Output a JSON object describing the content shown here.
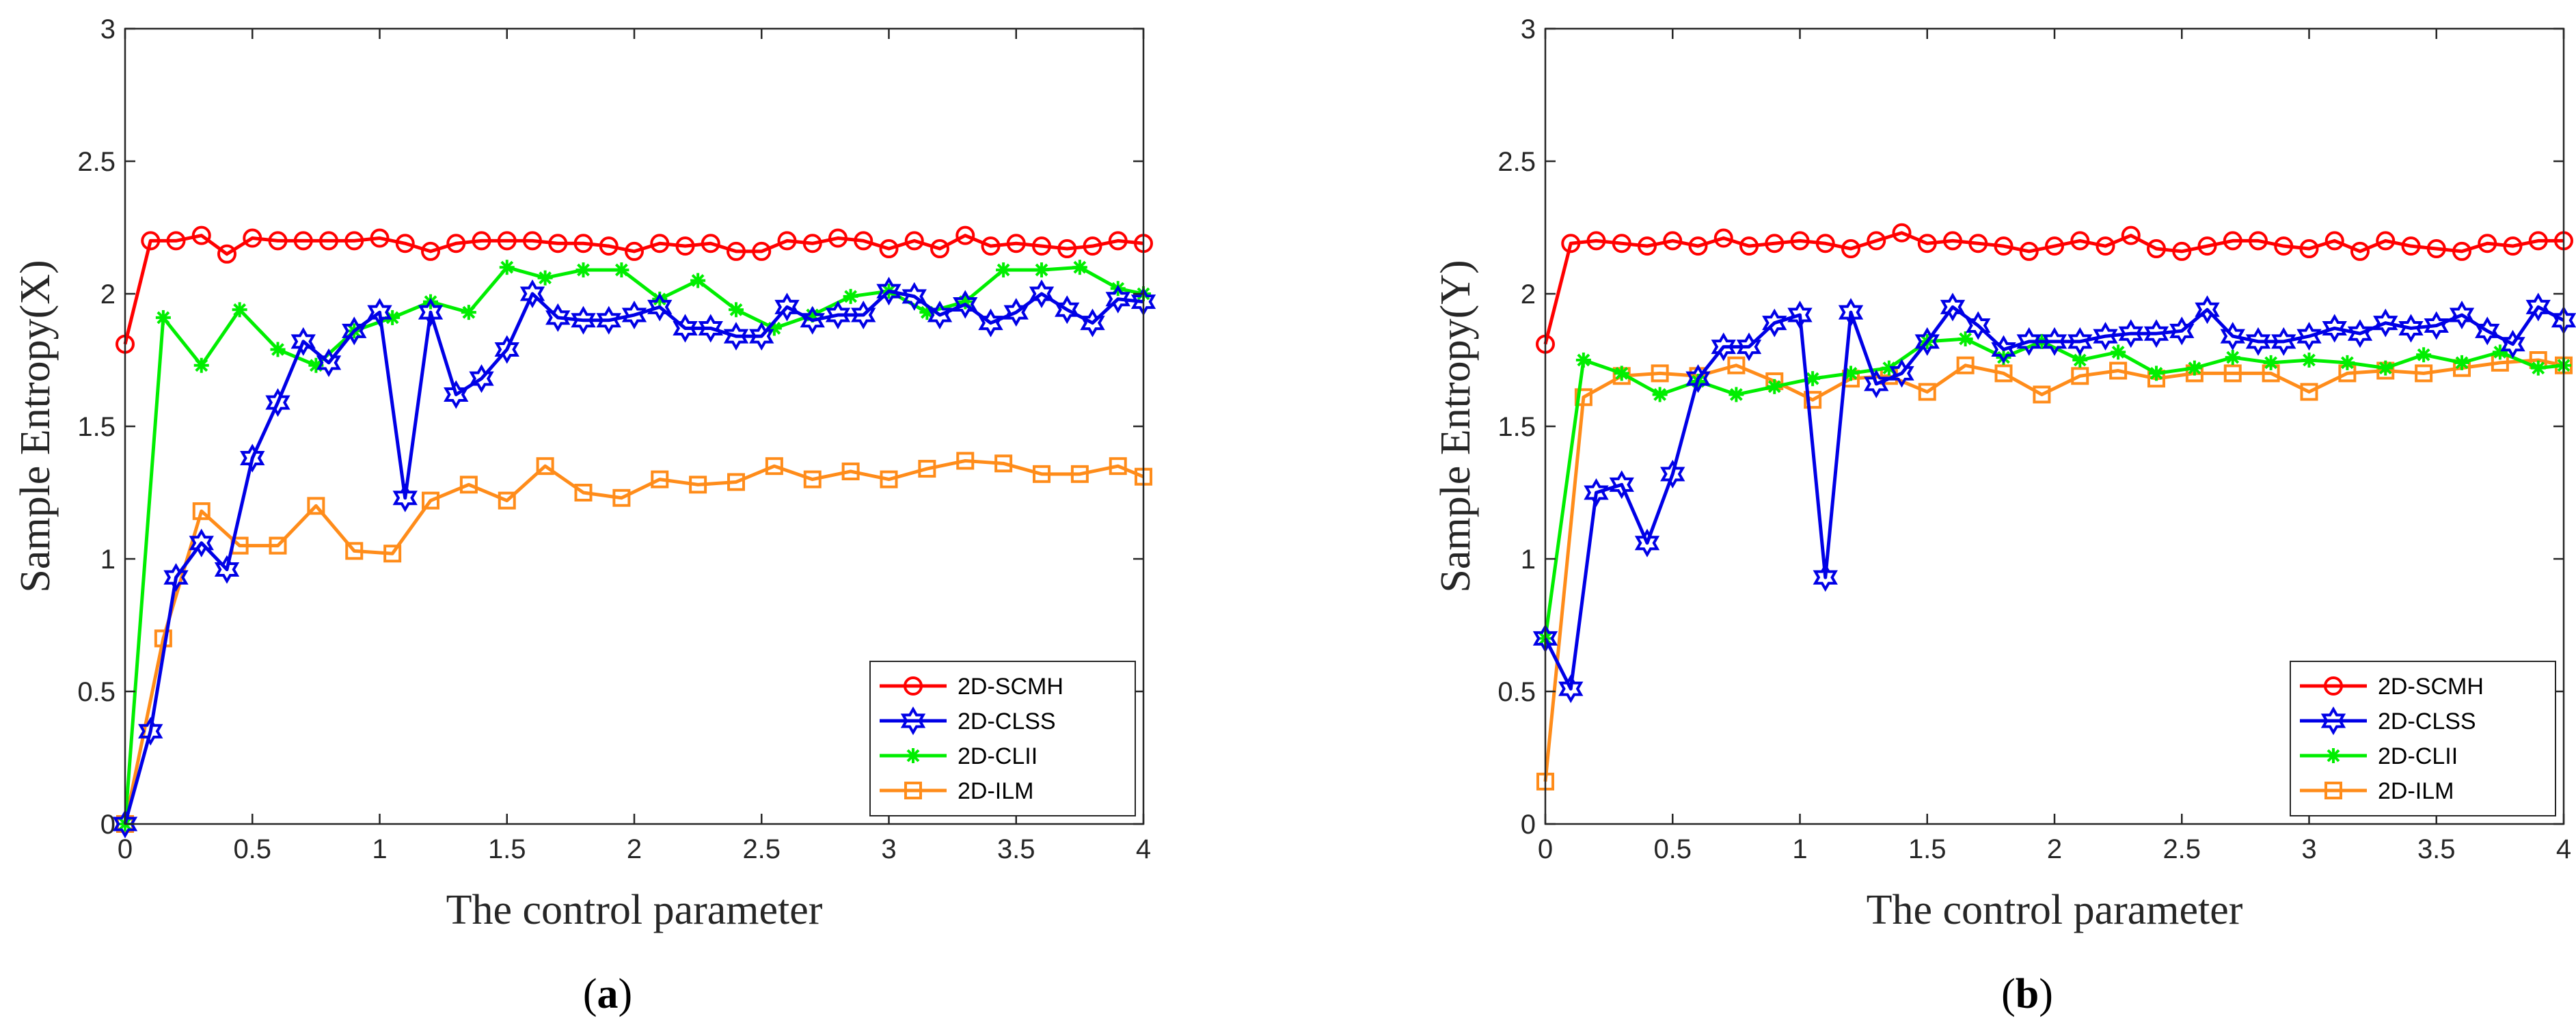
{
  "colors": {
    "2D-SCMH": "#ff0000",
    "2D-CLSS": "#0000e6",
    "2D-CLII": "#00ee00",
    "2D-ILM": "#ff8c1a",
    "axis": "#262626"
  },
  "chart_data": [
    {
      "type": "line",
      "caption": {
        "open": "(",
        "letter": "a",
        "close": ")"
      },
      "xlabel": "The control parameter",
      "ylabel": "Sample Entropy(X)",
      "xlim": [
        0,
        4
      ],
      "ylim": [
        0,
        3
      ],
      "xticks": [
        0,
        0.5,
        1,
        1.5,
        2,
        2.5,
        3,
        3.5,
        4
      ],
      "xtick_labels": [
        "0",
        "0.5",
        "1",
        "1.5",
        "2",
        "2.5",
        "3",
        "3.5",
        "4"
      ],
      "yticks": [
        0,
        0.5,
        1,
        1.5,
        2,
        2.5,
        3
      ],
      "ytick_labels": [
        "0",
        "0.5",
        "1",
        "1.5",
        "2",
        "2.5",
        "3"
      ],
      "grid": false,
      "legend": "bottom-right",
      "series": [
        {
          "name": "2D-SCMH",
          "marker": "circle",
          "x": [
            0,
            0.1,
            0.2,
            0.3,
            0.4,
            0.5,
            0.6,
            0.7,
            0.8,
            0.9,
            1.0,
            1.1,
            1.2,
            1.3,
            1.4,
            1.5,
            1.6,
            1.7,
            1.8,
            1.9,
            2.0,
            2.1,
            2.2,
            2.3,
            2.4,
            2.5,
            2.6,
            2.7,
            2.8,
            2.9,
            3.0,
            3.1,
            3.2,
            3.3,
            3.4,
            3.5,
            3.6,
            3.7,
            3.8,
            3.9,
            4.0
          ],
          "y": [
            1.81,
            2.2,
            2.2,
            2.22,
            2.15,
            2.21,
            2.2,
            2.2,
            2.2,
            2.2,
            2.21,
            2.19,
            2.16,
            2.19,
            2.2,
            2.2,
            2.2,
            2.19,
            2.19,
            2.18,
            2.16,
            2.19,
            2.18,
            2.19,
            2.16,
            2.16,
            2.2,
            2.19,
            2.21,
            2.2,
            2.17,
            2.2,
            2.17,
            2.22,
            2.18,
            2.19,
            2.18,
            2.17,
            2.18,
            2.2,
            2.19
          ]
        },
        {
          "name": "2D-CLSS",
          "marker": "hexagram",
          "x": [
            0,
            0.1,
            0.2,
            0.3,
            0.4,
            0.5,
            0.6,
            0.7,
            0.8,
            0.9,
            1.0,
            1.1,
            1.2,
            1.3,
            1.4,
            1.5,
            1.6,
            1.7,
            1.8,
            1.9,
            2.0,
            2.1,
            2.2,
            2.3,
            2.4,
            2.5,
            2.6,
            2.7,
            2.8,
            2.9,
            3.0,
            3.1,
            3.2,
            3.3,
            3.4,
            3.5,
            3.6,
            3.7,
            3.8,
            3.9,
            4.0
          ],
          "y": [
            0,
            0.35,
            0.93,
            1.06,
            0.96,
            1.38,
            1.59,
            1.82,
            1.74,
            1.86,
            1.93,
            1.23,
            1.93,
            1.62,
            1.68,
            1.79,
            2.0,
            1.91,
            1.9,
            1.9,
            1.92,
            1.95,
            1.87,
            1.87,
            1.84,
            1.84,
            1.95,
            1.9,
            1.92,
            1.92,
            2.01,
            1.99,
            1.92,
            1.96,
            1.89,
            1.93,
            2.0,
            1.94,
            1.89,
            1.98,
            1.97
          ]
        },
        {
          "name": "2D-CLII",
          "marker": "asterisk",
          "x": [
            0,
            0.15,
            0.3,
            0.45,
            0.6,
            0.75,
            0.9,
            1.05,
            1.2,
            1.35,
            1.5,
            1.65,
            1.8,
            1.95,
            2.1,
            2.25,
            2.4,
            2.55,
            2.7,
            2.85,
            3.0,
            3.15,
            3.3,
            3.45,
            3.6,
            3.75,
            3.9,
            4.0
          ],
          "y": [
            0,
            1.91,
            1.73,
            1.94,
            1.79,
            1.73,
            1.86,
            1.91,
            1.97,
            1.93,
            2.1,
            2.06,
            2.09,
            2.09,
            1.98,
            2.05,
            1.94,
            1.87,
            1.92,
            1.99,
            2.01,
            1.93,
            1.97,
            2.09,
            2.09,
            2.1,
            2.02,
            2.0
          ]
        },
        {
          "name": "2D-ILM",
          "marker": "square",
          "x": [
            0,
            0.15,
            0.3,
            0.45,
            0.6,
            0.75,
            0.9,
            1.05,
            1.2,
            1.35,
            1.5,
            1.65,
            1.8,
            1.95,
            2.1,
            2.25,
            2.4,
            2.55,
            2.7,
            2.85,
            3.0,
            3.15,
            3.3,
            3.45,
            3.6,
            3.75,
            3.9,
            4.0
          ],
          "y": [
            0,
            0.7,
            1.18,
            1.05,
            1.05,
            1.2,
            1.03,
            1.02,
            1.22,
            1.28,
            1.22,
            1.35,
            1.25,
            1.23,
            1.3,
            1.28,
            1.29,
            1.35,
            1.3,
            1.33,
            1.3,
            1.34,
            1.37,
            1.36,
            1.32,
            1.32,
            1.35,
            1.31
          ]
        }
      ]
    },
    {
      "type": "line",
      "caption": {
        "open": "(",
        "letter": "b",
        "close": ")"
      },
      "xlabel": "The control parameter",
      "ylabel": "Sample Entropy(Y)",
      "xlim": [
        0,
        4
      ],
      "ylim": [
        0,
        3
      ],
      "xticks": [
        0,
        0.5,
        1,
        1.5,
        2,
        2.5,
        3,
        3.5,
        4
      ],
      "xtick_labels": [
        "0",
        "0.5",
        "1",
        "1.5",
        "2",
        "2.5",
        "3",
        "3.5",
        "4"
      ],
      "yticks": [
        0,
        0.5,
        1,
        1.5,
        2,
        2.5,
        3
      ],
      "ytick_labels": [
        "0",
        "0.5",
        "1",
        "1.5",
        "2",
        "2.5",
        "3"
      ],
      "grid": false,
      "legend": "bottom-right",
      "series": [
        {
          "name": "2D-SCMH",
          "marker": "circle",
          "x": [
            0,
            0.1,
            0.2,
            0.3,
            0.4,
            0.5,
            0.6,
            0.7,
            0.8,
            0.9,
            1.0,
            1.1,
            1.2,
            1.3,
            1.4,
            1.5,
            1.6,
            1.7,
            1.8,
            1.9,
            2.0,
            2.1,
            2.2,
            2.3,
            2.4,
            2.5,
            2.6,
            2.7,
            2.8,
            2.9,
            3.0,
            3.1,
            3.2,
            3.3,
            3.4,
            3.5,
            3.6,
            3.7,
            3.8,
            3.9,
            4.0
          ],
          "y": [
            1.81,
            2.19,
            2.2,
            2.19,
            2.18,
            2.2,
            2.18,
            2.21,
            2.18,
            2.19,
            2.2,
            2.19,
            2.17,
            2.2,
            2.23,
            2.19,
            2.2,
            2.19,
            2.18,
            2.16,
            2.18,
            2.2,
            2.18,
            2.22,
            2.17,
            2.16,
            2.18,
            2.2,
            2.2,
            2.18,
            2.17,
            2.2,
            2.16,
            2.2,
            2.18,
            2.17,
            2.16,
            2.19,
            2.18,
            2.2,
            2.2
          ]
        },
        {
          "name": "2D-CLSS",
          "marker": "hexagram",
          "x": [
            0,
            0.1,
            0.2,
            0.3,
            0.4,
            0.5,
            0.6,
            0.7,
            0.8,
            0.9,
            1.0,
            1.1,
            1.2,
            1.3,
            1.4,
            1.5,
            1.6,
            1.7,
            1.8,
            1.9,
            2.0,
            2.1,
            2.2,
            2.3,
            2.4,
            2.5,
            2.6,
            2.7,
            2.8,
            2.9,
            3.0,
            3.1,
            3.2,
            3.3,
            3.4,
            3.5,
            3.6,
            3.7,
            3.8,
            3.9,
            4.0
          ],
          "y": [
            0.7,
            0.51,
            1.25,
            1.28,
            1.06,
            1.32,
            1.68,
            1.8,
            1.8,
            1.89,
            1.92,
            0.93,
            1.93,
            1.66,
            1.7,
            1.82,
            1.95,
            1.88,
            1.79,
            1.82,
            1.82,
            1.82,
            1.84,
            1.85,
            1.85,
            1.86,
            1.94,
            1.84,
            1.82,
            1.82,
            1.84,
            1.87,
            1.85,
            1.89,
            1.87,
            1.88,
            1.92,
            1.86,
            1.81,
            1.95,
            1.9
          ]
        },
        {
          "name": "2D-CLII",
          "marker": "asterisk",
          "x": [
            0,
            0.15,
            0.3,
            0.45,
            0.6,
            0.75,
            0.9,
            1.05,
            1.2,
            1.35,
            1.5,
            1.65,
            1.8,
            1.95,
            2.1,
            2.25,
            2.4,
            2.55,
            2.7,
            2.85,
            3.0,
            3.15,
            3.3,
            3.45,
            3.6,
            3.75,
            3.9,
            4.0
          ],
          "y": [
            0.7,
            1.75,
            1.7,
            1.62,
            1.67,
            1.62,
            1.65,
            1.68,
            1.7,
            1.72,
            1.82,
            1.83,
            1.76,
            1.82,
            1.75,
            1.78,
            1.7,
            1.72,
            1.76,
            1.74,
            1.75,
            1.74,
            1.72,
            1.77,
            1.74,
            1.78,
            1.72,
            1.73
          ]
        },
        {
          "name": "2D-ILM",
          "marker": "square",
          "x": [
            0,
            0.15,
            0.3,
            0.45,
            0.6,
            0.75,
            0.9,
            1.05,
            1.2,
            1.35,
            1.5,
            1.65,
            1.8,
            1.95,
            2.1,
            2.25,
            2.4,
            2.55,
            2.7,
            2.85,
            3.0,
            3.15,
            3.3,
            3.45,
            3.6,
            3.75,
            3.9,
            4.0
          ],
          "y": [
            0.16,
            1.61,
            1.69,
            1.7,
            1.69,
            1.73,
            1.67,
            1.6,
            1.68,
            1.69,
            1.63,
            1.73,
            1.7,
            1.62,
            1.69,
            1.71,
            1.68,
            1.7,
            1.7,
            1.7,
            1.63,
            1.7,
            1.71,
            1.7,
            1.72,
            1.74,
            1.75,
            1.73
          ]
        }
      ]
    }
  ]
}
